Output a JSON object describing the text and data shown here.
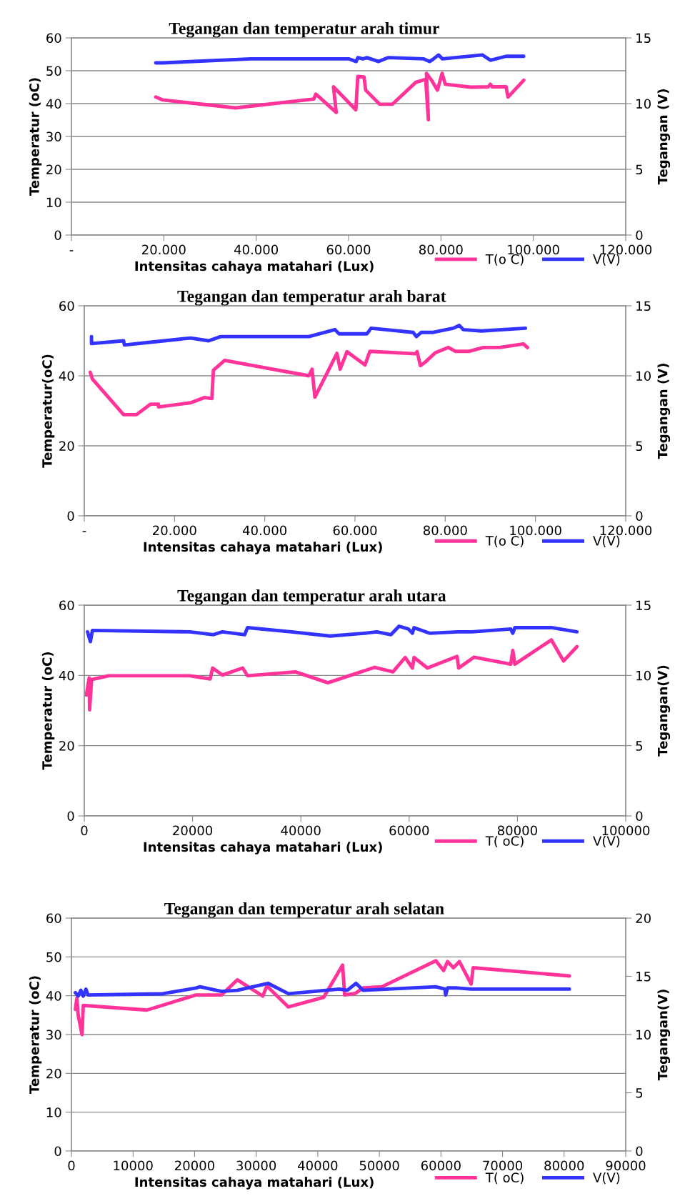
{
  "chart_data": [
    {
      "type": "line",
      "title": "Tegangan dan temperatur arah timur",
      "xlabel": "Intensitas cahaya matahari (Lux)",
      "ylabel": "Temperatur (oC)",
      "y2label": "Tegangan (V)",
      "xlim": [
        0,
        120000
      ],
      "xticks": [
        {
          "value": 0,
          "label": "-"
        },
        {
          "value": 20000,
          "label": "20.000"
        },
        {
          "value": 40000,
          "label": "40.000"
        },
        {
          "value": 60000,
          "label": "60.000"
        },
        {
          "value": 80000,
          "label": "80.000"
        },
        {
          "value": 100000,
          "label": "100.000"
        },
        {
          "value": 120000,
          "label": "120.000"
        }
      ],
      "ylim": [
        0,
        60
      ],
      "yticks": [
        0,
        10,
        20,
        30,
        40,
        50,
        60
      ],
      "y2lim": [
        0,
        15
      ],
      "y2ticks": [
        0,
        5,
        10,
        15
      ],
      "grid": "y",
      "legend": "bottom right",
      "marker": "none",
      "line_style": "solid",
      "series": [
        {
          "name": "T(o C)",
          "color": "#ff3399",
          "x": [
            18260,
            19790,
            35500,
            52480,
            52900,
            57330,
            56730,
            61570,
            62000,
            63350,
            63700,
            66750,
            69470,
            74570,
            76690,
            77280,
            76860,
            77960,
            79240,
            80250,
            80930,
            86450,
            90270,
            90700,
            91120,
            94100,
            94520,
            97920
          ],
          "values": [
            42.0,
            41.1,
            38.7,
            41.4,
            42.9,
            37.3,
            45.1,
            38.1,
            48.3,
            48.1,
            44.1,
            39.8,
            39.8,
            46.5,
            47.4,
            35.1,
            49.2,
            47.1,
            44.1,
            49.2,
            45.9,
            45.0,
            45.1,
            45.9,
            45.1,
            45.1,
            42.0,
            47.1
          ]
        },
        {
          "name": "V(V)",
          "color": "#3333ff",
          "axis": "y2",
          "x": [
            18260,
            19790,
            38900,
            60130,
            61650,
            62000,
            63100,
            63950,
            66500,
            68620,
            76270,
            77540,
            78390,
            79490,
            80340,
            89000,
            90700,
            94100,
            97920
          ],
          "values": [
            13.1,
            13.1,
            13.4,
            13.4,
            13.2,
            13.5,
            13.4,
            13.5,
            13.2,
            13.5,
            13.4,
            13.2,
            13.4,
            13.7,
            13.4,
            13.7,
            13.3,
            13.6,
            13.6
          ]
        }
      ]
    },
    {
      "type": "line",
      "title": "Tegangan dan temperatur arah barat",
      "xlabel": "Intensitas cahaya matahari (Lux)",
      "ylabel": "Temperatur(oC)",
      "y2label": "Tegangan (V)",
      "xlim": [
        0,
        120000
      ],
      "xticks": [
        {
          "value": 0,
          "label": "-"
        },
        {
          "value": 20000,
          "label": "20.000"
        },
        {
          "value": 40000,
          "label": "40.000"
        },
        {
          "value": 60000,
          "label": "60.000"
        },
        {
          "value": 80000,
          "label": "80.000"
        },
        {
          "value": 100000,
          "label": "100.000"
        },
        {
          "value": 120000,
          "label": "120.000"
        }
      ],
      "ylim": [
        0,
        60
      ],
      "yticks": [
        0,
        20,
        40,
        60
      ],
      "y2lim": [
        0,
        15
      ],
      "y2ticks": [
        0,
        5,
        10,
        15
      ],
      "grid": "y",
      "legend": "bottom right",
      "marker": "none",
      "line_style": "solid",
      "series": [
        {
          "name": "T(o C)",
          "color": "#ff3399",
          "x": [
            1330,
            1780,
            8710,
            11560,
            14670,
            16440,
            16440,
            23560,
            26670,
            28270,
            28620,
            31110,
            49780,
            50490,
            51110,
            56000,
            56710,
            58220,
            62220,
            63290,
            73330,
            73780,
            74490,
            75560,
            77780,
            80710,
            82220,
            85330,
            88440,
            92000,
            97330,
            98220
          ],
          "values": [
            41.0,
            39.1,
            28.9,
            28.9,
            31.9,
            31.9,
            31.1,
            32.3,
            33.8,
            33.5,
            41.6,
            44.4,
            40.0,
            41.9,
            33.9,
            46.4,
            41.9,
            46.9,
            43.1,
            47.0,
            46.3,
            46.9,
            42.9,
            43.9,
            46.6,
            48.1,
            47.0,
            47.0,
            48.1,
            48.1,
            49.1,
            48.1
          ]
        },
        {
          "name": "V(V)",
          "color": "#3333ff",
          "axis": "y2",
          "x": [
            1600,
            1600,
            8710,
            8890,
            14670,
            23560,
            27560,
            30220,
            49780,
            55560,
            56440,
            62670,
            63560,
            72890,
            73600,
            74670,
            77330,
            81780,
            83110,
            84000,
            88000,
            97780
          ],
          "values": [
            12.8,
            12.3,
            12.5,
            12.2,
            12.4,
            12.7,
            12.5,
            12.8,
            12.8,
            13.3,
            13.0,
            13.0,
            13.4,
            13.1,
            12.8,
            13.1,
            13.1,
            13.4,
            13.6,
            13.3,
            13.2,
            13.4
          ]
        }
      ]
    },
    {
      "type": "line",
      "title": "Tegangan dan temperatur arah utara",
      "xlabel": "Intensitas cahaya matahari (Lux)",
      "ylabel": "Temperatur (oC)",
      "y2label": "Tegangan(V)",
      "xlim": [
        0,
        100000
      ],
      "xticks": [
        0,
        20000,
        40000,
        60000,
        80000,
        100000
      ],
      "ylim": [
        0,
        60
      ],
      "yticks": [
        0,
        20,
        40,
        60
      ],
      "y2lim": [
        0,
        15
      ],
      "y2ticks": [
        0,
        5,
        10,
        15
      ],
      "grid": "y",
      "legend": "bottom right",
      "marker": "none",
      "line_style": "solid",
      "series": [
        {
          "name": "T( oC)",
          "color": "#ff3399",
          "x": [
            375,
            900,
            975,
            1350,
            4500,
            19500,
            23250,
            23700,
            25500,
            29250,
            30150,
            39000,
            45000,
            53640,
            57010,
            59260,
            60610,
            60900,
            63380,
            68850,
            69150,
            72000,
            78770,
            79140,
            79520,
            86270,
            88520,
            91000
          ],
          "values": [
            34.4,
            39.3,
            30.2,
            38.8,
            39.9,
            39.9,
            39.0,
            42.1,
            40.1,
            42.1,
            39.9,
            41.0,
            37.9,
            42.3,
            41.0,
            45.1,
            42.1,
            45.1,
            42.1,
            45.4,
            42.1,
            45.2,
            43.2,
            47.1,
            43.2,
            50.1,
            44.1,
            48.2
          ]
        },
        {
          "name": "V(V)",
          "color": "#3333ff",
          "axis": "y2",
          "x": [
            600,
            1130,
            1500,
            19500,
            23850,
            25500,
            29630,
            30150,
            38250,
            45380,
            51760,
            54010,
            56640,
            58140,
            59860,
            60610,
            60900,
            63760,
            69000,
            71630,
            78770,
            79140,
            79520,
            86270,
            91000
          ],
          "values": [
            13.1,
            12.4,
            13.2,
            13.1,
            12.9,
            13.1,
            12.9,
            13.4,
            13.1,
            12.8,
            13.0,
            13.1,
            12.9,
            13.5,
            13.3,
            13.0,
            13.4,
            13.0,
            13.1,
            13.1,
            13.3,
            13.0,
            13.4,
            13.4,
            13.1
          ]
        }
      ]
    },
    {
      "type": "line",
      "title": "Tegangan dan temperatur arah selatan",
      "xlabel": "Intensitas cahaya matahari (Lux)",
      "ylabel": "Temperatur (oC)",
      "y2label": "Tegangan(V)",
      "xlim": [
        0,
        90000
      ],
      "xticks": [
        0,
        10000,
        20000,
        30000,
        40000,
        50000,
        60000,
        70000,
        80000,
        90000
      ],
      "ylim": [
        0,
        60
      ],
      "yticks": [
        0,
        10,
        20,
        30,
        40,
        50,
        60
      ],
      "y2lim": [
        0,
        20
      ],
      "y2ticks": [
        0,
        5,
        10,
        15,
        20
      ],
      "grid": "y",
      "legend": "bottom right",
      "marker": "none",
      "line_style": "solid",
      "series": [
        {
          "name": "T( oC)",
          "color": "#ff3399",
          "x": [
            640,
            890,
            1090,
            1720,
            1920,
            12260,
            20230,
            24380,
            26930,
            31080,
            31720,
            35230,
            40970,
            44030,
            44360,
            46080,
            47360,
            50420,
            59170,
            60440,
            61080,
            62030,
            62990,
            64900,
            65230,
            80860
          ],
          "values": [
            36.5,
            39.4,
            35.0,
            30.0,
            37.5,
            36.3,
            40.2,
            40.2,
            44.1,
            39.9,
            42.5,
            37.1,
            39.6,
            47.9,
            40.2,
            40.6,
            42.0,
            42.3,
            49.0,
            46.5,
            48.8,
            47.2,
            48.8,
            43.0,
            47.2,
            45.1
          ]
        },
        {
          "name": "V(V)",
          "color": "#3333ff",
          "axis": "y2",
          "x": [
            640,
            1090,
            1530,
            1920,
            2360,
            2680,
            14810,
            20230,
            20870,
            24380,
            26930,
            31910,
            35230,
            43520,
            44790,
            46200,
            47350,
            59170,
            60630,
            60760,
            61080,
            62670,
            64900,
            80860
          ],
          "values": [
            13.6,
            13.3,
            13.8,
            13.3,
            13.9,
            13.4,
            13.5,
            14.0,
            14.1,
            13.7,
            13.8,
            14.4,
            13.5,
            13.9,
            13.8,
            14.4,
            13.8,
            14.1,
            13.9,
            13.4,
            14.0,
            14.0,
            13.9,
            13.9
          ]
        }
      ]
    }
  ]
}
